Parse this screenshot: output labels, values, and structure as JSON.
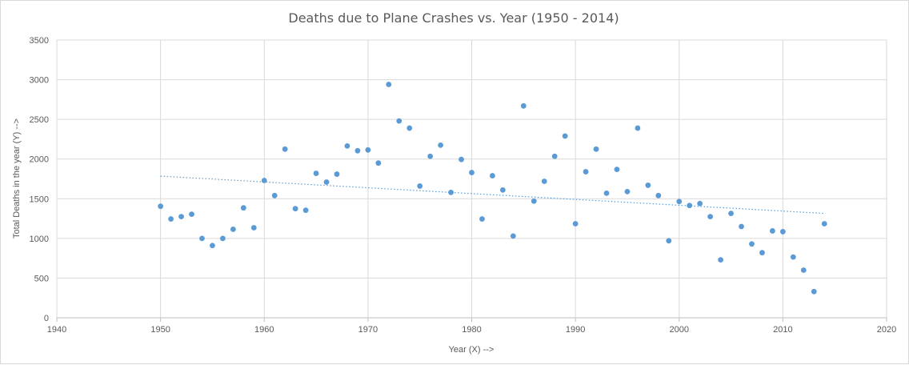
{
  "chart_data": {
    "type": "scatter",
    "title": "Deaths due to Plane Crashes vs. Year (1950 - 2014)",
    "xlabel": "Year (X) -->",
    "ylabel": "Total Deaths in the year (Y) -->",
    "xlim": [
      1940,
      2020
    ],
    "ylim": [
      0,
      3500
    ],
    "xticks": [
      1940,
      1950,
      1960,
      1970,
      1980,
      1990,
      2000,
      2010,
      2020
    ],
    "yticks": [
      0,
      500,
      1000,
      1500,
      2000,
      2500,
      3000,
      3500
    ],
    "grid": true,
    "legend": "none",
    "marker_color": "#5b9bd5",
    "trendline": {
      "type": "linear",
      "style": "dotted",
      "color": "#5b9bd5",
      "x": [
        1950,
        2014
      ],
      "y": [
        1785,
        1315
      ]
    },
    "x": [
      1950,
      1951,
      1952,
      1953,
      1954,
      1955,
      1956,
      1957,
      1958,
      1959,
      1960,
      1961,
      1962,
      1963,
      1964,
      1965,
      1966,
      1967,
      1968,
      1969,
      1970,
      1971,
      1972,
      1973,
      1974,
      1975,
      1976,
      1977,
      1978,
      1979,
      1980,
      1981,
      1982,
      1983,
      1984,
      1985,
      1986,
      1987,
      1988,
      1989,
      1990,
      1991,
      1992,
      1993,
      1994,
      1995,
      1996,
      1997,
      1998,
      1999,
      2000,
      2001,
      2002,
      2003,
      2004,
      2005,
      2006,
      2007,
      2008,
      2009,
      2010,
      2011,
      2012,
      2013,
      2014
    ],
    "y": [
      1405,
      1245,
      1275,
      1305,
      1000,
      910,
      1000,
      1115,
      1385,
      1135,
      1730,
      1540,
      2125,
      1375,
      1355,
      1820,
      1710,
      1810,
      2165,
      2105,
      2115,
      1950,
      2940,
      2480,
      2390,
      1660,
      2035,
      2175,
      1580,
      1995,
      1830,
      1245,
      1790,
      1610,
      1030,
      2670,
      1470,
      1720,
      2035,
      2290,
      1185,
      1840,
      2125,
      1570,
      1870,
      1590,
      2390,
      1670,
      1540,
      970,
      1465,
      1415,
      1440,
      1275,
      730,
      1315,
      1150,
      930,
      820,
      1095,
      1085,
      765,
      600,
      330,
      1185
    ]
  }
}
